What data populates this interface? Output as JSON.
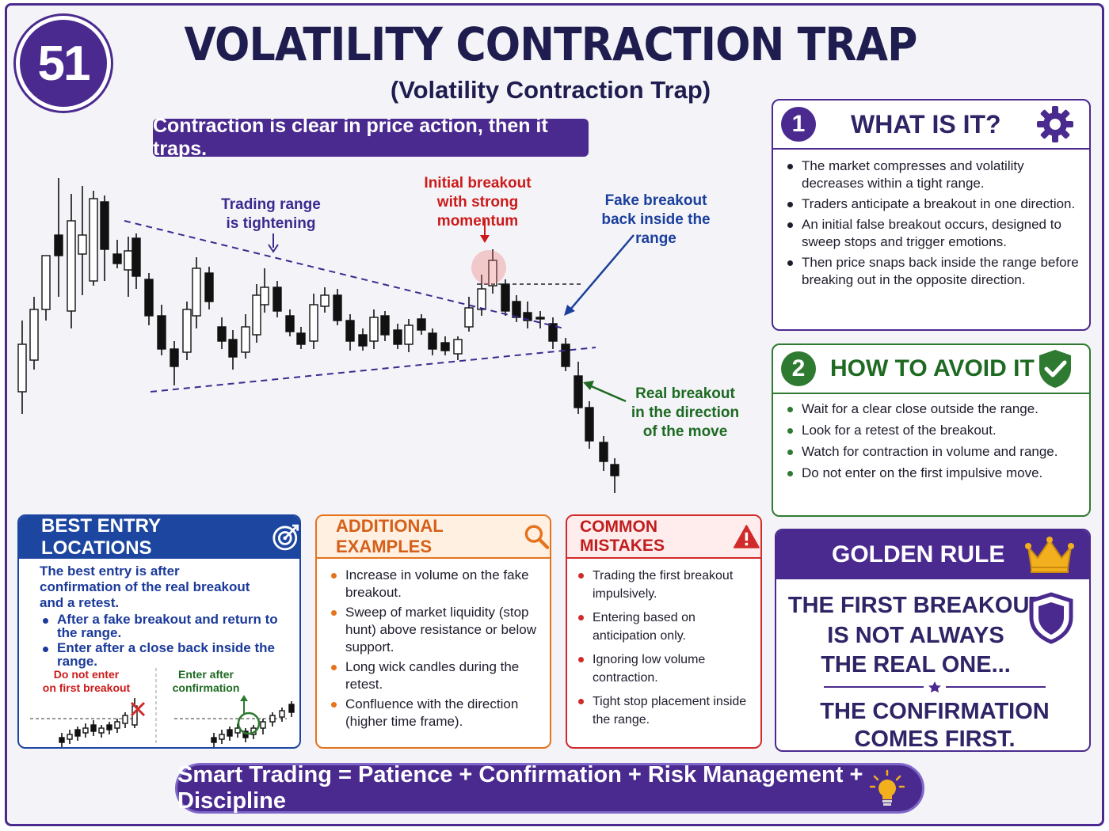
{
  "header": {
    "number": "51",
    "title": "VOLATILITY CONTRACTION TRAP",
    "subtitle": "(Volatility Contraction Trap)",
    "banner": "Contraction is clear in price action, then it traps."
  },
  "annotations": {
    "range_line1": "Trading range",
    "range_line2": "is tightening",
    "initial_line1": "Initial breakout",
    "initial_line2": "with strong momentum",
    "fake_line1": "Fake breakout",
    "fake_line2": "back inside the range",
    "real_line1": "Real breakout",
    "real_line2": "in the direction",
    "real_line3": "of the move"
  },
  "colors": {
    "purple": "#4b2a8f",
    "green": "#2f7a31",
    "blue": "#1d46a0",
    "orange": "#e6731c",
    "red": "#d12a2a",
    "gold": "#f2b01e"
  },
  "what_is_it": {
    "number": "1",
    "title": "WHAT IS IT?",
    "icon": "gear-icon",
    "items": [
      "The market compresses and volatility decreases within a tight range.",
      "Traders anticipate a breakout in one direction.",
      "An initial false breakout occurs, designed to sweep stops and trigger emotions.",
      "Then price snaps back inside the range before breaking out in the opposite direction."
    ]
  },
  "how_to_avoid": {
    "number": "2",
    "title": "HOW TO AVOID IT",
    "icon": "shield-check-icon",
    "items": [
      "Wait for a clear close outside the range.",
      "Look for a retest of the breakout.",
      "Watch for contraction in volume and range.",
      "Do not enter on the first impulsive move."
    ]
  },
  "best_entry": {
    "title": "BEST ENTRY LOCATIONS",
    "icon": "target-icon",
    "intro": "The best entry is after confirmation of the real breakout and a retest.",
    "items": [
      "After a fake breakout and return to the range.",
      "Enter after a close back inside the range."
    ],
    "left_label_1": "Do not enter",
    "left_label_2": "on first breakout",
    "right_label_1": "Enter after",
    "right_label_2": "confirmation"
  },
  "additional_examples": {
    "title": "ADDITIONAL EXAMPLES",
    "icon": "magnifier-icon",
    "items": [
      "Increase in volume on the fake breakout.",
      "Sweep of market liquidity (stop hunt) above resistance or below support.",
      "Long wick candles during the retest.",
      "Confluence with the direction (higher time frame)."
    ]
  },
  "common_mistakes": {
    "title": "COMMON MISTAKES",
    "icon": "warning-icon",
    "items": [
      "Trading the first breakout impulsively.",
      "Entering based on anticipation only.",
      "Ignoring low volume contraction.",
      "Tight stop placement inside the range."
    ]
  },
  "golden_rule": {
    "title": "GOLDEN RULE",
    "icon": "crown-icon",
    "line1": "THE FIRST BREAKOUT",
    "line2": "IS NOT ALWAYS",
    "line3": "THE REAL ONE...",
    "line4": "THE CONFIRMATION",
    "line5": "COMES FIRST."
  },
  "footer": {
    "text": "Smart Trading = Patience + Confirmation + Risk Management + Discipline",
    "icon": "lightbulb-icon"
  }
}
